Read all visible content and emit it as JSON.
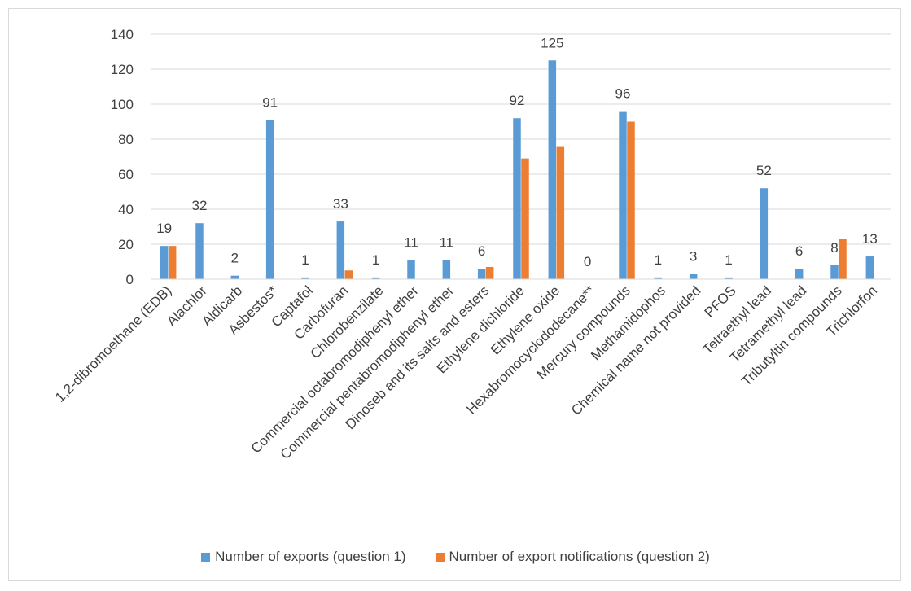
{
  "chart_data": {
    "type": "bar",
    "title": "",
    "xlabel": "",
    "ylabel": "",
    "ylim": [
      0,
      140
    ],
    "yticks": [
      0,
      20,
      40,
      60,
      80,
      100,
      120,
      140
    ],
    "grid": true,
    "legend_position": "bottom",
    "categories": [
      "1,2-dibromoethane (EDB)",
      "Alachlor",
      "Aldicarb",
      "Asbestos*",
      "Captafol",
      "Carbofuran",
      "Chlorobenzilate",
      "Commercial octabromodiphenyl ether",
      "Commercial pentabromodiphenyl ether",
      "Dinoseb and its salts and esters",
      "Ethylene dichloride",
      "Ethylene oxide",
      "Hexabromocyclododecane**",
      "Mercury compounds",
      "Methamidophos",
      "Chemical name not provided",
      "PFOS",
      "Tetraethyl lead",
      "Tetramethyl lead",
      "Tributyltin compounds",
      "Trichlorfon"
    ],
    "series": [
      {
        "name": "Number of exports (question 1)",
        "color": "#5b9bd5",
        "values": [
          19,
          32,
          2,
          91,
          1,
          33,
          1,
          11,
          11,
          6,
          92,
          125,
          0,
          96,
          1,
          3,
          1,
          52,
          6,
          8,
          13
        ],
        "data_labels": [
          "19",
          "32",
          "2",
          "91",
          "1",
          "33",
          "1",
          "11",
          "11",
          "6",
          "92",
          "125",
          "0",
          "96",
          "1",
          "3",
          "1",
          "52",
          "6",
          "8",
          "13"
        ]
      },
      {
        "name": "Number of export notifications (question 2)",
        "color": "#ed7d31",
        "values": [
          19,
          0,
          0,
          0,
          0,
          5,
          0,
          0,
          0,
          7,
          69,
          76,
          0,
          90,
          0,
          0,
          0,
          0,
          0,
          23,
          0
        ]
      }
    ]
  }
}
